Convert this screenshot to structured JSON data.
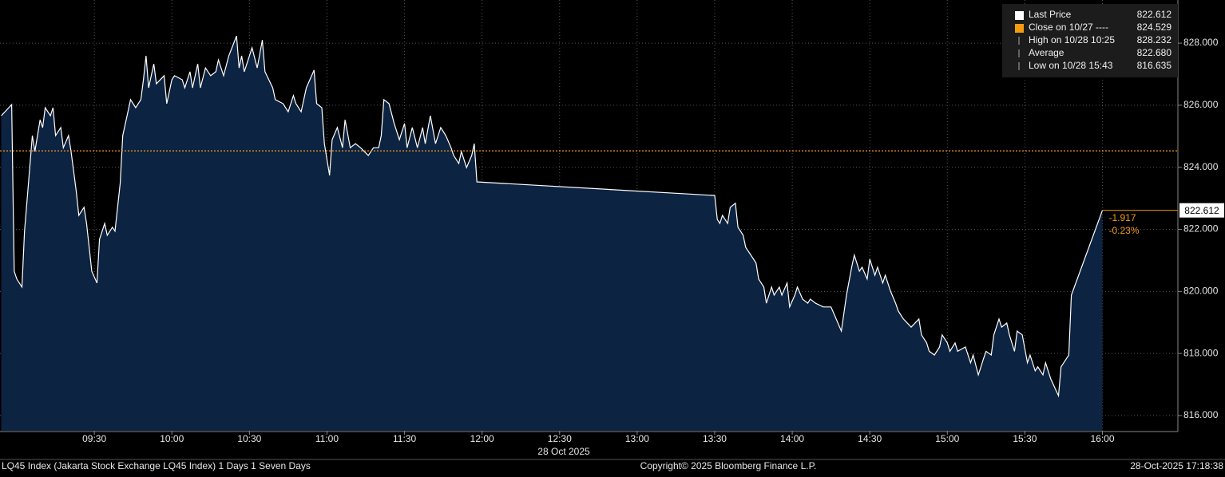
{
  "chart_data": {
    "type": "area",
    "x": [
      534,
      538,
      539,
      540,
      542,
      543,
      544,
      546,
      547,
      549,
      550,
      551,
      553,
      554,
      555,
      557,
      558,
      560,
      561,
      563,
      564,
      566,
      567,
      569,
      571,
      572,
      574,
      575,
      577,
      578,
      580,
      581,
      583,
      584,
      586,
      588,
      589,
      590,
      591,
      593,
      594,
      597,
      598,
      600,
      601,
      604,
      605,
      607,
      608,
      610,
      611,
      613,
      615,
      617,
      618,
      620,
      622,
      625,
      626,
      627,
      628,
      629,
      631,
      633,
      635,
      636,
      639,
      640,
      643,
      645,
      647,
      648,
      650,
      652,
      655,
      656,
      658,
      659,
      661,
      662,
      664,
      666,
      667,
      669,
      671,
      673,
      676,
      678,
      680,
      681,
      682,
      684,
      686,
      688,
      690,
      691,
      693,
      695,
      697,
      698,
      700,
      702,
      704,
      706,
      708,
      709,
      711,
      712,
      714,
      716,
      717,
      718,
      810,
      811,
      812,
      813,
      815,
      816,
      818,
      819,
      821,
      822,
      824,
      826,
      827,
      829,
      830,
      832,
      833,
      835,
      836,
      838,
      839,
      841,
      842,
      844,
      846,
      847,
      849,
      852,
      855,
      857,
      859,
      861,
      863,
      864,
      866,
      867,
      869,
      870,
      872,
      873,
      875,
      876,
      878,
      880,
      881,
      883,
      886,
      889,
      890,
      892,
      893,
      895,
      897,
      898,
      900,
      901,
      903,
      904,
      907,
      909,
      910,
      912,
      914,
      915,
      917,
      918,
      920,
      921,
      923,
      924,
      926,
      927,
      929,
      931,
      932,
      934,
      935,
      937,
      938,
      940,
      943,
      944,
      947,
      948,
      960
    ],
    "values": [
      825.66,
      826.02,
      820.65,
      820.4,
      820.14,
      821.94,
      822.97,
      825.02,
      824.51,
      825.53,
      825.28,
      825.92,
      825.66,
      825.92,
      825.02,
      825.28,
      824.63,
      825.02,
      824.51,
      823.22,
      822.45,
      822.71,
      822.19,
      820.65,
      820.27,
      821.68,
      822.19,
      821.81,
      822.07,
      821.94,
      823.48,
      825.02,
      825.79,
      826.18,
      825.92,
      826.18,
      826.82,
      827.59,
      826.56,
      827.33,
      826.69,
      826.95,
      826.05,
      826.82,
      826.95,
      826.82,
      826.56,
      827.08,
      826.56,
      827.33,
      826.56,
      827.2,
      826.95,
      827.08,
      827.46,
      826.95,
      827.59,
      828.232,
      827.2,
      827.59,
      827.08,
      827.33,
      827.85,
      827.2,
      828.1,
      827.08,
      826.56,
      826.18,
      826.05,
      825.79,
      826.31,
      826.05,
      825.79,
      826.56,
      827.13,
      826.05,
      825.92,
      824.76,
      823.74,
      824.89,
      825.28,
      824.63,
      825.53,
      824.63,
      824.76,
      824.63,
      824.38,
      824.63,
      824.63,
      825.02,
      826.18,
      826.05,
      825.41,
      824.89,
      825.41,
      824.63,
      825.28,
      824.63,
      825.28,
      824.76,
      825.66,
      824.76,
      825.28,
      825.02,
      824.63,
      824.38,
      824.12,
      824.51,
      823.99,
      824.38,
      824.76,
      823.53,
      823.09,
      822.32,
      822.19,
      822.45,
      822.19,
      822.71,
      822.84,
      822.07,
      821.81,
      821.42,
      821.17,
      820.91,
      820.4,
      820.14,
      819.62,
      820.14,
      819.88,
      820.14,
      819.88,
      820.27,
      819.5,
      819.88,
      820.14,
      819.75,
      819.62,
      819.75,
      819.62,
      819.5,
      819.5,
      819.11,
      818.72,
      819.88,
      820.78,
      821.17,
      820.65,
      820.78,
      820.4,
      821.04,
      820.52,
      820.78,
      820.27,
      820.52,
      820.01,
      819.62,
      819.37,
      819.11,
      818.85,
      819.11,
      818.6,
      818.34,
      818.07,
      817.95,
      818.21,
      818.6,
      818.34,
      818.07,
      818.34,
      818.07,
      818.21,
      817.7,
      817.95,
      817.31,
      817.83,
      818.07,
      817.95,
      818.6,
      819.11,
      818.85,
      818.98,
      818.6,
      818.07,
      818.72,
      818.6,
      817.7,
      817.95,
      817.44,
      817.57,
      817.31,
      817.7,
      817.18,
      816.635,
      817.57,
      817.95,
      819.88,
      822.612
    ],
    "color": "#ffffff",
    "fill_color": "#0c2342",
    "xlim": [
      533.5,
      989.2
    ],
    "ylim": [
      815.51,
      829.39
    ],
    "xticks": [
      {
        "value": 570,
        "label": "09:30"
      },
      {
        "value": 600,
        "label": "10:00"
      },
      {
        "value": 630,
        "label": "10:30"
      },
      {
        "value": 660,
        "label": "11:00"
      },
      {
        "value": 690,
        "label": "11:30"
      },
      {
        "value": 720,
        "label": "12:00"
      },
      {
        "value": 750,
        "label": "12:30"
      },
      {
        "value": 780,
        "label": "13:00"
      },
      {
        "value": 810,
        "label": "13:30"
      },
      {
        "value": 840,
        "label": "14:00"
      },
      {
        "value": 870,
        "label": "14:30"
      },
      {
        "value": 900,
        "label": "15:00"
      },
      {
        "value": 930,
        "label": "15:30"
      },
      {
        "value": 960,
        "label": "16:00"
      }
    ],
    "yticks": [
      {
        "value": 816,
        "label": "816.000"
      },
      {
        "value": 818,
        "label": "818.000"
      },
      {
        "value": 820,
        "label": "820.000"
      },
      {
        "value": 822,
        "label": "822.000"
      },
      {
        "value": 824,
        "label": "824.000"
      },
      {
        "value": 826,
        "label": "826.000"
      },
      {
        "value": 828,
        "label": "828.000"
      }
    ],
    "grid": true,
    "x_label": "28 Oct 2025",
    "close": {
      "value": 824.529,
      "color": "#f39c12"
    },
    "change": {
      "value": -1.917,
      "percent": {
        "value": -0.23,
        "label": "-0.23%"
      },
      "color": "#f39c12"
    },
    "legend": {
      "position": "top-right",
      "items": [
        {
          "name": "Last Price",
          "value": 822.612,
          "color": "#ffffff"
        },
        {
          "name": "Close on 10/27 ----",
          "value": 824.529,
          "color": "#f39c12"
        },
        {
          "name": "High on 10/28 10:25",
          "value": 828.232,
          "color": "#aaaaaa"
        },
        {
          "name": "Average",
          "value": 822.68,
          "label": "822.680",
          "color": "#aaaaaa"
        },
        {
          "name": "Low on 10/28 15:43",
          "value": 816.635,
          "color": "#aaaaaa"
        }
      ]
    },
    "footer": {
      "left": "LQ45 Index (Jakarta Stock Exchange LQ45 Index) 1 Days 1 Seven Days",
      "center": "Copyright© 2025 Bloomberg Finance L.P.",
      "right": "28-Oct-2025 17:18:38"
    }
  }
}
